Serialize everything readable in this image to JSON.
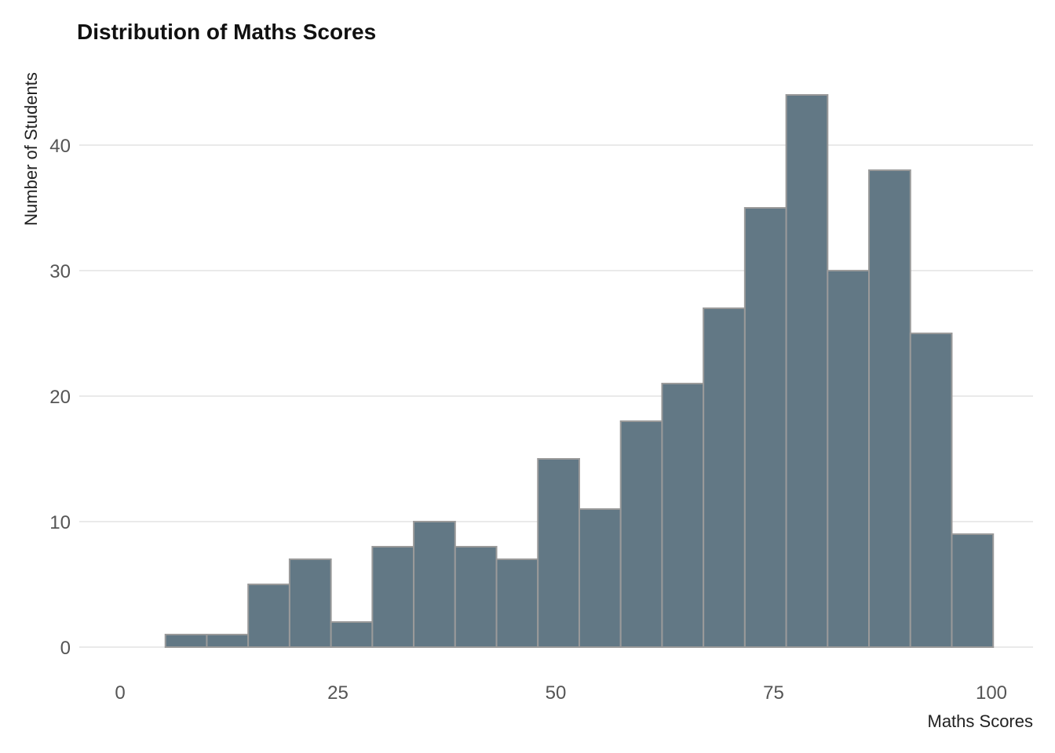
{
  "chart_data": {
    "type": "bar",
    "title": "Distribution of Maths Scores",
    "xlabel": "Maths Scores",
    "ylabel": "Number of Students",
    "xlim": [
      0,
      100
    ],
    "ylim": [
      0,
      44
    ],
    "x_ticks": [
      0,
      25,
      50,
      75,
      100
    ],
    "y_ticks": [
      0,
      10,
      20,
      30,
      40
    ],
    "grid": "horizontal",
    "legend": "none",
    "bar_color": "#627885",
    "bar_edge_color": "#9a9a9a",
    "bins": [
      {
        "start": 5.2,
        "end": 9.95,
        "count": 1
      },
      {
        "start": 9.95,
        "end": 14.7,
        "count": 1
      },
      {
        "start": 14.7,
        "end": 19.45,
        "count": 5
      },
      {
        "start": 19.45,
        "end": 24.2,
        "count": 7
      },
      {
        "start": 24.2,
        "end": 28.95,
        "count": 2
      },
      {
        "start": 28.95,
        "end": 33.7,
        "count": 8
      },
      {
        "start": 33.7,
        "end": 38.45,
        "count": 10
      },
      {
        "start": 38.45,
        "end": 43.2,
        "count": 8
      },
      {
        "start": 43.2,
        "end": 47.95,
        "count": 7
      },
      {
        "start": 47.95,
        "end": 52.7,
        "count": 15
      },
      {
        "start": 52.7,
        "end": 57.45,
        "count": 11
      },
      {
        "start": 57.45,
        "end": 62.2,
        "count": 18
      },
      {
        "start": 62.2,
        "end": 66.95,
        "count": 21
      },
      {
        "start": 66.95,
        "end": 71.7,
        "count": 27
      },
      {
        "start": 71.7,
        "end": 76.45,
        "count": 35
      },
      {
        "start": 76.45,
        "end": 81.2,
        "count": 44
      },
      {
        "start": 81.2,
        "end": 85.95,
        "count": 30
      },
      {
        "start": 85.95,
        "end": 90.7,
        "count": 38
      },
      {
        "start": 90.7,
        "end": 95.45,
        "count": 25
      },
      {
        "start": 95.45,
        "end": 100.2,
        "count": 9
      }
    ]
  }
}
